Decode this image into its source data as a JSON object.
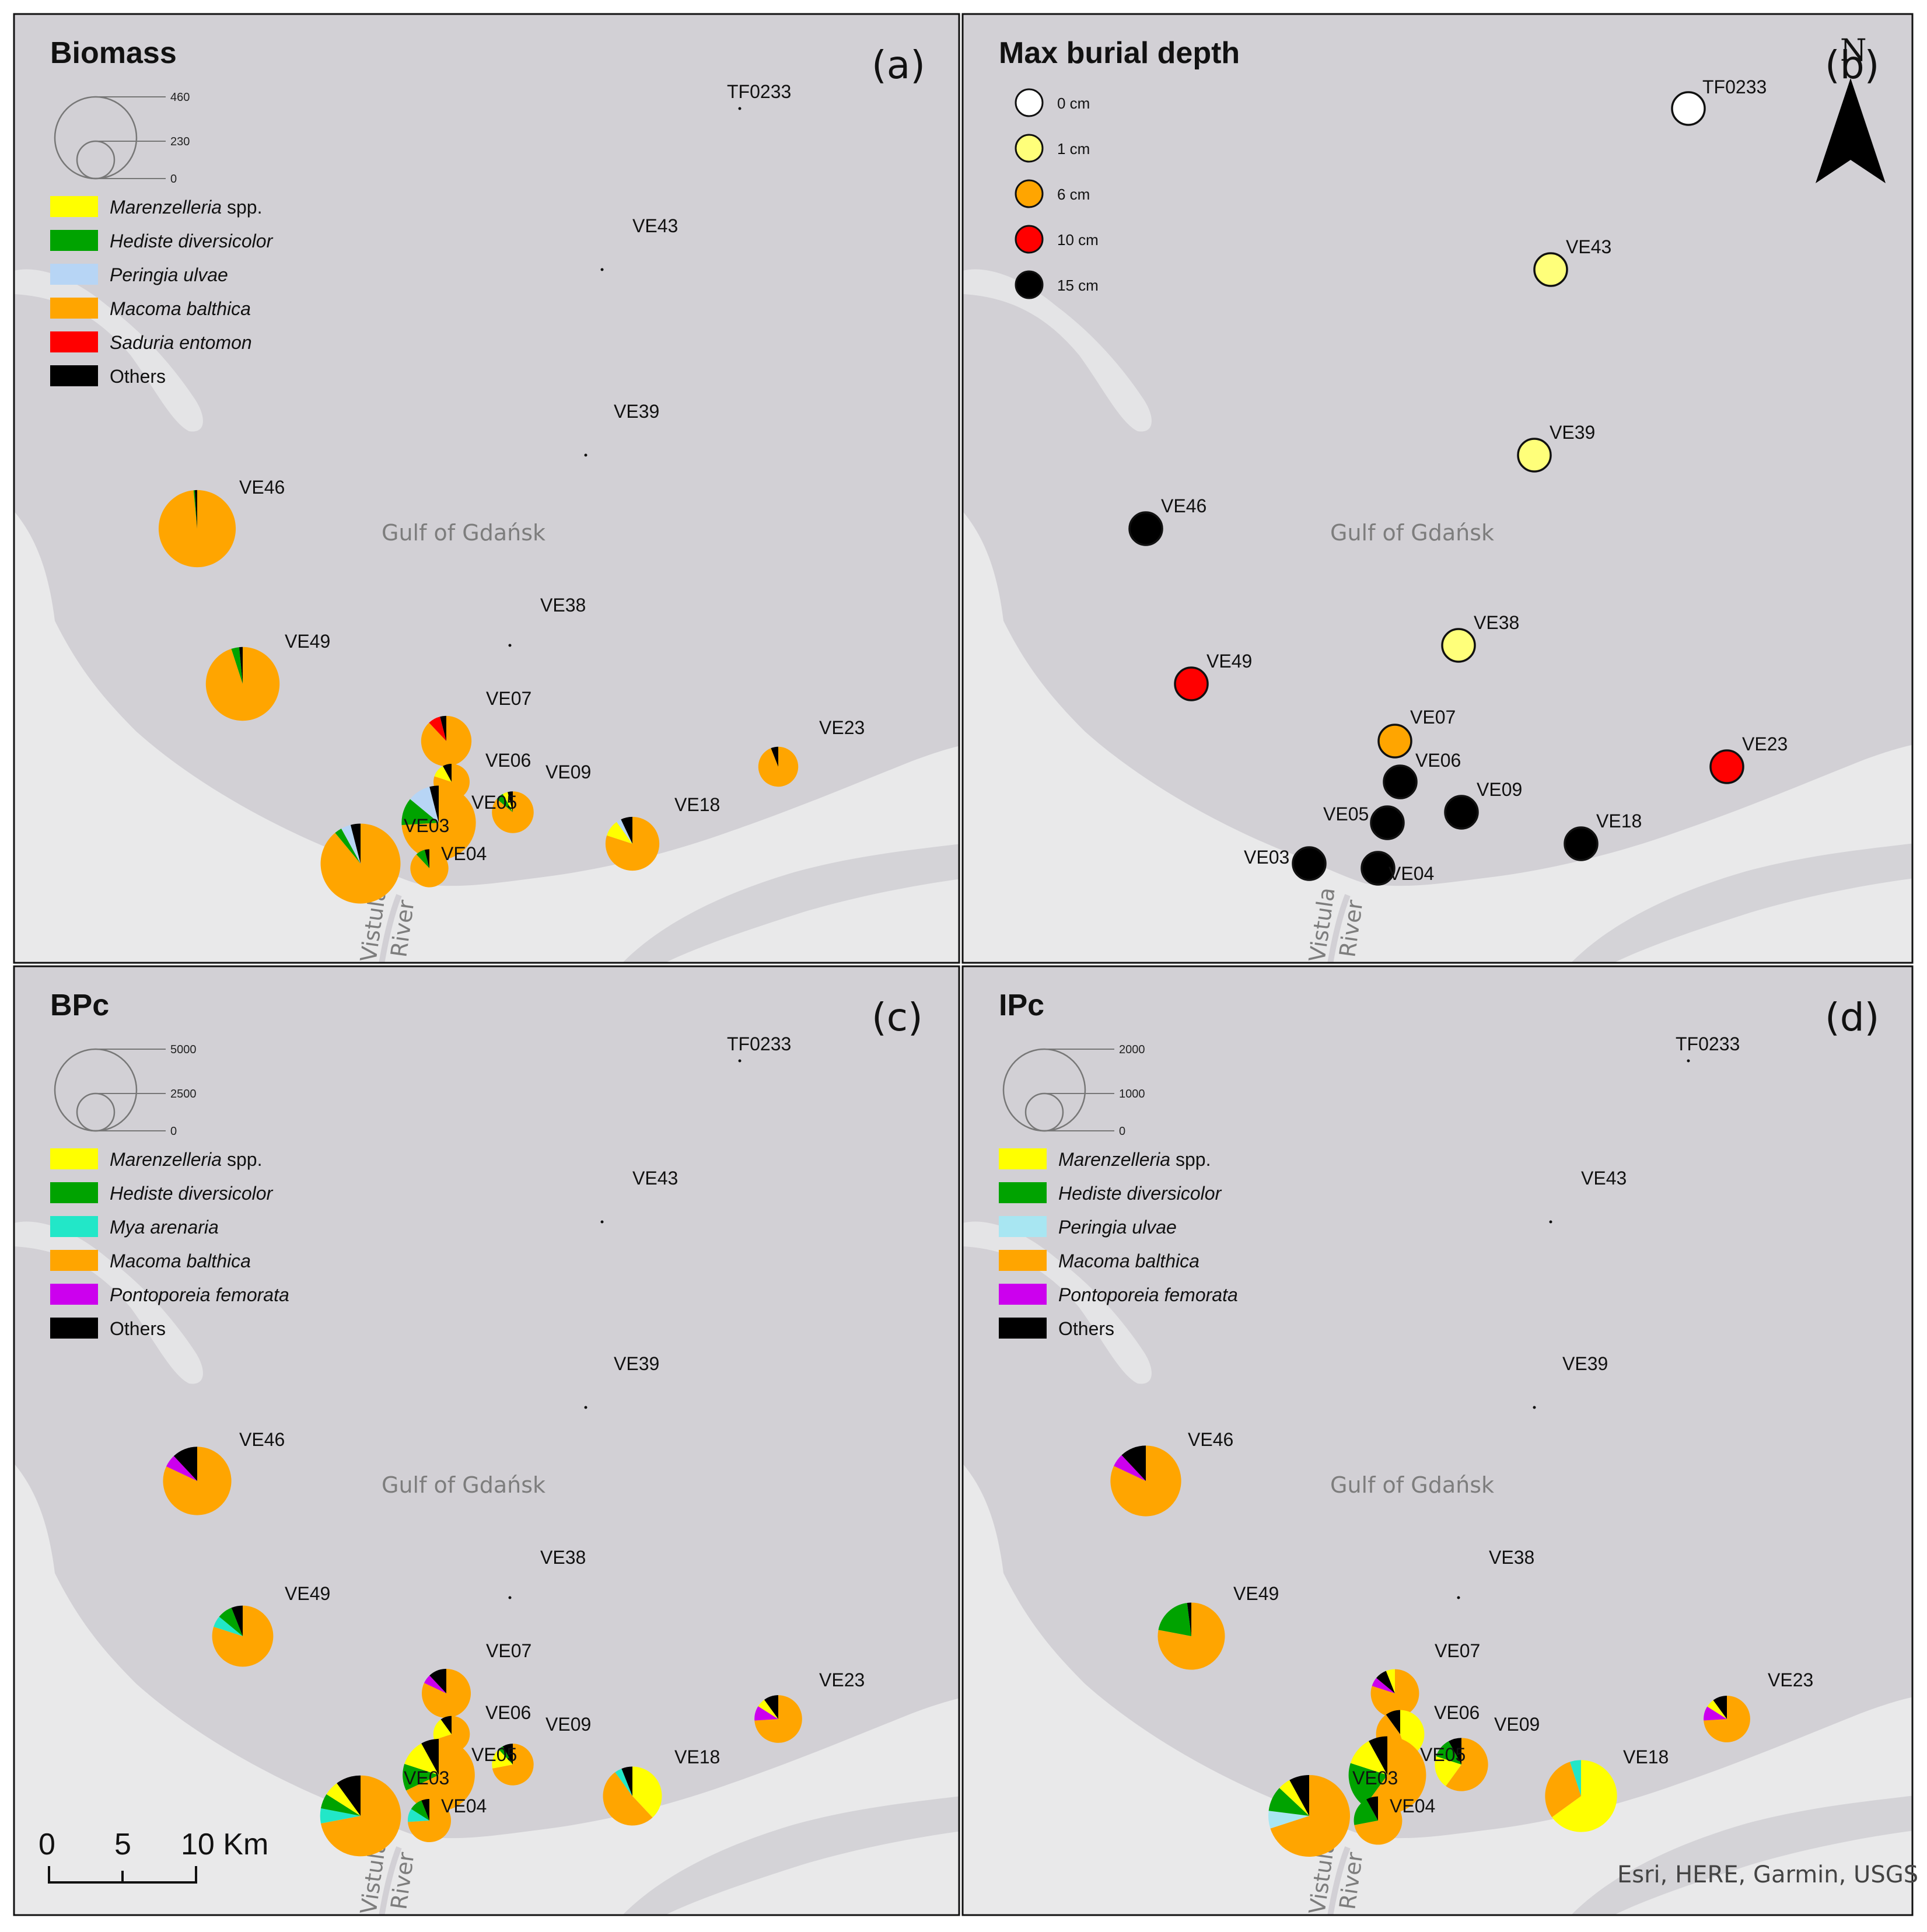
{
  "colors": {
    "water": "#d2d0d5",
    "land": "#e9e9ea",
    "spit": "#e4e4e6",
    "Marenzelleria": "#ffff00",
    "Hediste": "#00a300",
    "Peringia": "#b7d5f5",
    "PeringiaD": "#a8e6f2",
    "Mya": "#22e7c8",
    "Macoma": "#ffa500",
    "Saduria": "#ff0000",
    "Pontoporeia": "#cc00ee",
    "Others": "#000000"
  },
  "labels": {
    "gulf": "Gulf of Gdańsk",
    "river1": "Vistula",
    "river2": "River",
    "attribution": "Esri, HERE, Garmin, USGS",
    "north": "N",
    "scale": [
      "0",
      "5",
      "10 Km"
    ]
  },
  "stations": [
    {
      "id": "TF0233"
    },
    {
      "id": "VE43"
    },
    {
      "id": "VE39"
    },
    {
      "id": "VE46"
    },
    {
      "id": "VE38"
    },
    {
      "id": "VE49"
    },
    {
      "id": "VE07"
    },
    {
      "id": "VE06"
    },
    {
      "id": "VE09"
    },
    {
      "id": "VE05"
    },
    {
      "id": "VE23"
    },
    {
      "id": "VE18"
    },
    {
      "id": "VE03"
    },
    {
      "id": "VE04"
    }
  ],
  "panels": [
    {
      "key": "a",
      "title": "Biomass",
      "label": "(a)",
      "size_legend": {
        "ticks": [
          "460",
          "230",
          "0"
        ],
        "max": 460
      },
      "legend": [
        {
          "name": "Marenzelleria",
          "suffix": " spp.",
          "color": "Marenzelleria"
        },
        {
          "name": "Hediste diversicolor",
          "suffix": "",
          "color": "Hediste"
        },
        {
          "name": "Peringia ulvae",
          "suffix": "",
          "color": "Peringia"
        },
        {
          "name": "Macoma balthica",
          "suffix": "",
          "color": "Macoma"
        },
        {
          "name": "Saduria entomon",
          "suffix": "",
          "color": "Saduria"
        },
        {
          "name": "Others",
          "suffix": "",
          "color": "Others",
          "plain": true
        }
      ],
      "pies": {
        "VE46": {
          "total": 410,
          "parts": {
            "Macoma": 0.985,
            "Hediste": 0.005,
            "Others": 0.01
          }
        },
        "VE49": {
          "total": 375,
          "parts": {
            "Macoma": 0.95,
            "Hediste": 0.035,
            "Others": 0.015
          }
        },
        "VE07": {
          "total": 175,
          "parts": {
            "Macoma": 0.88,
            "Saduria": 0.08,
            "Others": 0.04
          }
        },
        "VE06": {
          "total": 90,
          "parts": {
            "Macoma": 0.8,
            "Marenzelleria": 0.12,
            "Others": 0.08
          }
        },
        "VE09": {
          "total": 120,
          "parts": {
            "Macoma": 0.86,
            "Hediste": 0.06,
            "Marenzelleria": 0.04,
            "Others": 0.04
          }
        },
        "VE05": {
          "total": 380,
          "parts": {
            "Macoma": 0.74,
            "Hediste": 0.12,
            "Peringia": 0.1,
            "Others": 0.04
          }
        },
        "VE23": {
          "total": 110,
          "parts": {
            "Macoma": 0.94,
            "Others": 0.06
          }
        },
        "VE18": {
          "total": 200,
          "parts": {
            "Macoma": 0.8,
            "Marenzelleria": 0.1,
            "Peringia": 0.03,
            "Others": 0.07
          }
        },
        "VE03": {
          "total": 440,
          "parts": {
            "Macoma": 0.89,
            "Hediste": 0.03,
            "Peringia": 0.04,
            "Others": 0.04
          }
        },
        "VE04": {
          "total": 100,
          "parts": {
            "Macoma": 0.88,
            "Hediste": 0.08,
            "Others": 0.04
          }
        }
      }
    },
    {
      "key": "b",
      "title": "Max burial depth",
      "label": "(b)",
      "legend": [
        {
          "label": "0 cm",
          "color": "#ffffff"
        },
        {
          "label": "1 cm",
          "color": "#ffff7a"
        },
        {
          "label": "6 cm",
          "color": "#ffa500"
        },
        {
          "label": "10 cm",
          "color": "#ff0000"
        },
        {
          "label": "15 cm",
          "color": "#000000"
        }
      ],
      "depths": {
        "TF0233": 0,
        "VE43": 1,
        "VE39": 1,
        "VE46": 15,
        "VE38": 1,
        "VE49": 10,
        "VE07": 6,
        "VE06": 15,
        "VE09": 15,
        "VE05": 15,
        "VE23": 10,
        "VE18": 15,
        "VE03": 15,
        "VE04": 15
      }
    },
    {
      "key": "c",
      "title": "BPc",
      "label": "(c)",
      "size_legend": {
        "ticks": [
          "5000",
          "2500",
          "0"
        ],
        "max": 5000
      },
      "legend": [
        {
          "name": "Marenzelleria",
          "suffix": " spp.",
          "color": "Marenzelleria"
        },
        {
          "name": "Hediste diversicolor",
          "suffix": "",
          "color": "Hediste"
        },
        {
          "name": "Mya arenaria",
          "suffix": "",
          "color": "Mya"
        },
        {
          "name": "Macoma balthica",
          "suffix": "",
          "color": "Macoma"
        },
        {
          "name": "Pontoporeia femorata",
          "suffix": "",
          "color": "Pontoporeia"
        },
        {
          "name": "Others",
          "suffix": "",
          "color": "Others",
          "plain": true
        }
      ],
      "pies": {
        "VE46": {
          "total": 3500,
          "parts": {
            "Macoma": 0.82,
            "Pontoporeia": 0.06,
            "Others": 0.12
          }
        },
        "VE49": {
          "total": 2800,
          "parts": {
            "Macoma": 0.8,
            "Mya": 0.06,
            "Hediste": 0.08,
            "Others": 0.06
          }
        },
        "VE07": {
          "total": 1800,
          "parts": {
            "Macoma": 0.82,
            "Pontoporeia": 0.06,
            "Others": 0.12
          }
        },
        "VE06": {
          "total": 1000,
          "parts": {
            "Macoma": 0.7,
            "Marenzelleria": 0.2,
            "Others": 0.1
          }
        },
        "VE09": {
          "total": 1300,
          "parts": {
            "Macoma": 0.72,
            "Marenzelleria": 0.16,
            "Hediste": 0.04,
            "Others": 0.08
          }
        },
        "VE05": {
          "total": 3900,
          "parts": {
            "Macoma": 0.68,
            "Hediste": 0.12,
            "Marenzelleria": 0.12,
            "Others": 0.08
          }
        },
        "VE23": {
          "total": 1700,
          "parts": {
            "Macoma": 0.74,
            "Pontoporeia": 0.1,
            "Marenzelleria": 0.06,
            "Others": 0.1
          }
        },
        "VE18": {
          "total": 2600,
          "parts": {
            "Marenzelleria": 0.38,
            "Macoma": 0.52,
            "Mya": 0.04,
            "Others": 0.06
          }
        },
        "VE03": {
          "total": 4900,
          "parts": {
            "Macoma": 0.72,
            "Mya": 0.06,
            "Hediste": 0.06,
            "Marenzelleria": 0.06,
            "Others": 0.1
          }
        },
        "VE04": {
          "total": 1400,
          "parts": {
            "Macoma": 0.74,
            "Mya": 0.1,
            "Hediste": 0.1,
            "Others": 0.06
          }
        }
      }
    },
    {
      "key": "d",
      "title": "IPc",
      "label": "(d)",
      "size_legend": {
        "ticks": [
          "2000",
          "1000",
          "0"
        ],
        "max": 2000
      },
      "legend": [
        {
          "name": "Marenzelleria",
          "suffix": " spp.",
          "color": "Marenzelleria"
        },
        {
          "name": "Hediste diversicolor",
          "suffix": "",
          "color": "Hediste"
        },
        {
          "name": "Peringia ulvae",
          "suffix": "",
          "color": "PeringiaD"
        },
        {
          "name": "Macoma balthica",
          "suffix": "",
          "color": "Macoma"
        },
        {
          "name": "Pontoporeia femorata",
          "suffix": "",
          "color": "Pontoporeia"
        },
        {
          "name": "Others",
          "suffix": "",
          "color": "Others",
          "plain": true
        }
      ],
      "pies": {
        "VE46": {
          "total": 1500,
          "parts": {
            "Macoma": 0.82,
            "Pontoporeia": 0.06,
            "Others": 0.12
          }
        },
        "VE49": {
          "total": 1350,
          "parts": {
            "Macoma": 0.78,
            "Hediste": 0.2,
            "Others": 0.02
          }
        },
        "VE07": {
          "total": 700,
          "parts": {
            "Macoma": 0.8,
            "Pontoporeia": 0.06,
            "Others": 0.08,
            "Marenzelleria": 0.06
          }
        },
        "VE06": {
          "total": 700,
          "parts": {
            "Marenzelleria": 0.45,
            "Macoma": 0.45,
            "Others": 0.1
          }
        },
        "VE09": {
          "total": 850,
          "parts": {
            "Macoma": 0.6,
            "Marenzelleria": 0.2,
            "Hediste": 0.12,
            "Others": 0.08
          }
        },
        "VE05": {
          "total": 1800,
          "parts": {
            "Macoma": 0.6,
            "Hediste": 0.2,
            "Marenzelleria": 0.12,
            "Others": 0.08
          }
        },
        "VE23": {
          "total": 650,
          "parts": {
            "Macoma": 0.74,
            "Pontoporeia": 0.1,
            "Marenzelleria": 0.06,
            "Others": 0.1
          }
        },
        "VE18": {
          "total": 1550,
          "parts": {
            "Marenzelleria": 0.65,
            "Macoma": 0.3,
            "Mya": 0.05
          }
        },
        "VE03": {
          "total": 2000,
          "parts": {
            "Macoma": 0.7,
            "PeringiaD": 0.07,
            "Hediste": 0.1,
            "Marenzelleria": 0.05,
            "Others": 0.08
          }
        },
        "VE04": {
          "total": 700,
          "parts": {
            "Macoma": 0.72,
            "Hediste": 0.2,
            "Others": 0.08
          }
        }
      }
    }
  ]
}
